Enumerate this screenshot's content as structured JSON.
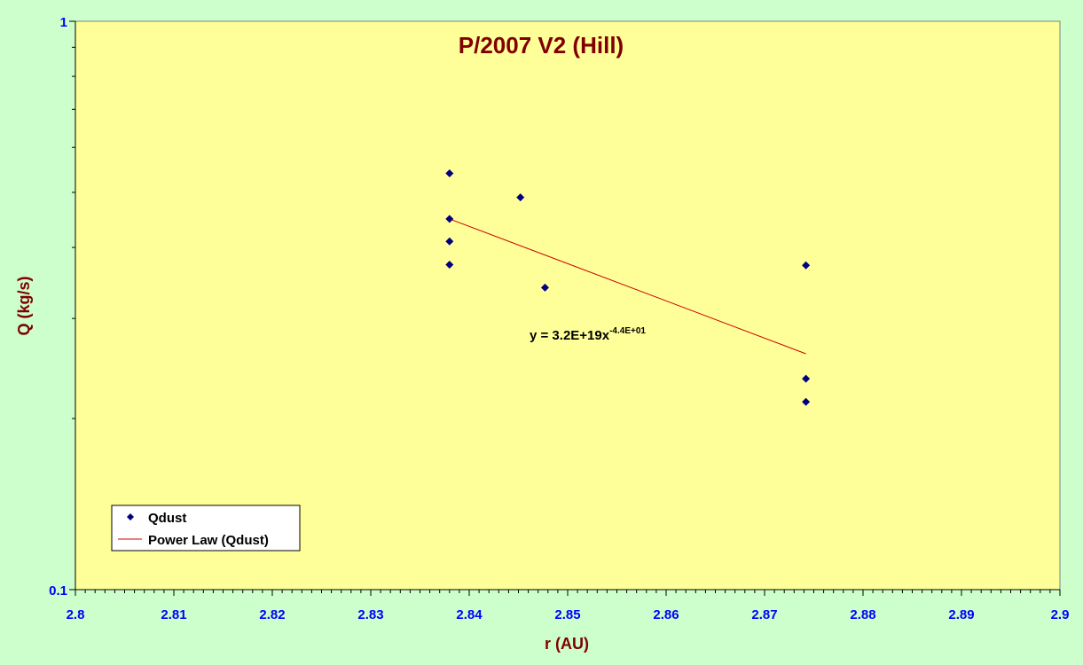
{
  "chart_data": {
    "type": "scatter",
    "title": "P/2007 V2 (Hill)",
    "xlabel": "r (AU)",
    "ylabel": "Q (kg/s)",
    "xlim": [
      2.8,
      2.9
    ],
    "ylim": [
      0.1,
      1
    ],
    "y_scale": "log",
    "x_ticks": [
      "2.8",
      "2.81",
      "2.82",
      "2.83",
      "2.84",
      "2.85",
      "2.86",
      "2.87",
      "2.88",
      "2.89",
      "2.9"
    ],
    "y_ticks": [
      "0.1",
      "1"
    ],
    "grid": false,
    "series": [
      {
        "name": "Qdust",
        "marker": "diamond",
        "color": "#000080",
        "x": [
          2.838,
          2.838,
          2.838,
          2.838,
          2.8452,
          2.8477,
          2.8742,
          2.8742,
          2.8742
        ],
        "y": [
          0.54,
          0.449,
          0.41,
          0.373,
          0.49,
          0.34,
          0.372,
          0.235,
          0.214
        ]
      }
    ],
    "trendline": {
      "name": "Power Law (Qdust)",
      "type": "power",
      "color": "#cc0000",
      "x_range": [
        2.838,
        2.8742
      ],
      "coefficient": 3.2e+19,
      "exponent": -44,
      "start_value": 0.449,
      "end_value": 0.26,
      "label_text": "y = 3.2E+19x",
      "label_exponent": "-4.4E+01"
    },
    "legend": {
      "position": "bottom-left",
      "entries": [
        "Qdust",
        "Power Law (Qdust)"
      ]
    },
    "colors": {
      "background": "#ccffcc",
      "plot_area": "#ffff99",
      "tick_labels": "#0000ff",
      "titles": "#800000",
      "markers": "#000080",
      "trendline": "#cc0000"
    }
  }
}
